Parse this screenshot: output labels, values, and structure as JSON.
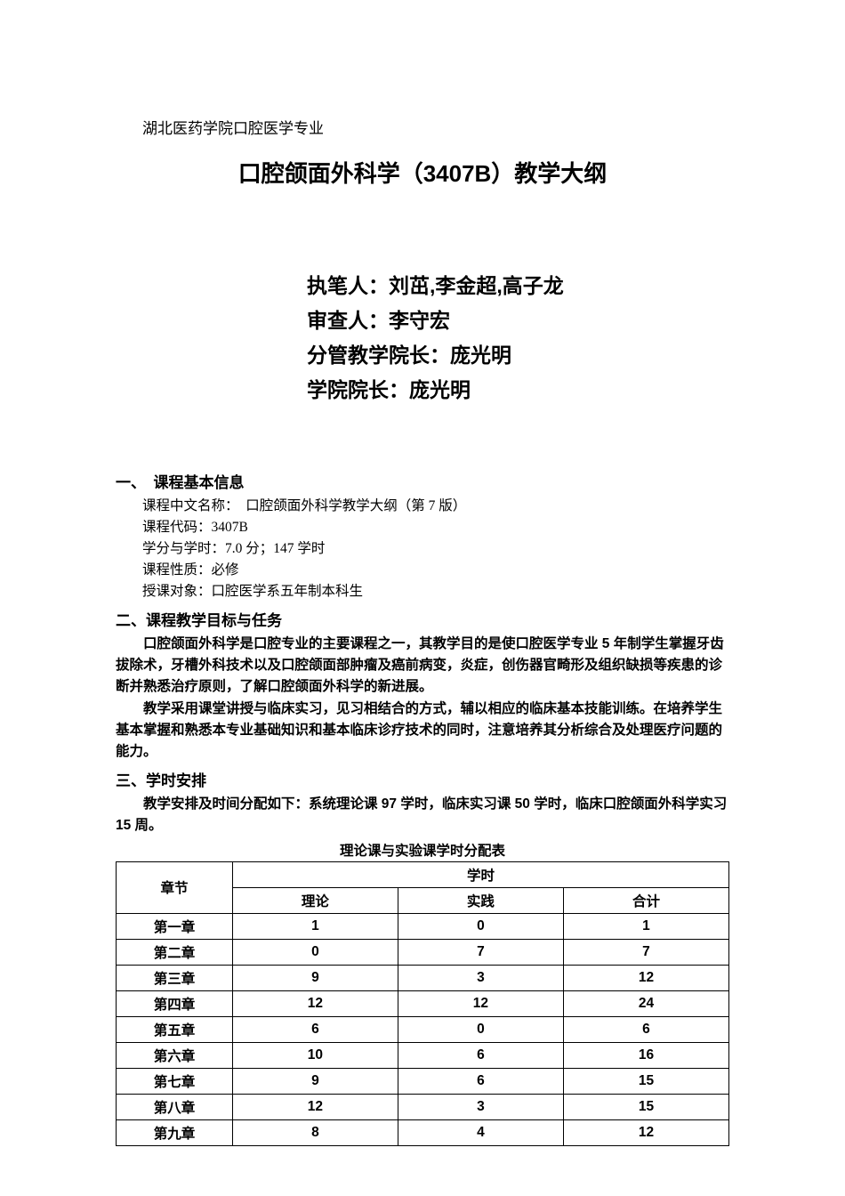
{
  "institution": "湖北医药学院口腔医学专业",
  "title": "口腔颌面外科学（3407B）教学大纲",
  "personnel": {
    "author_label": "执笔人：",
    "author_names": "刘茁,李金超,高子龙",
    "reviewer_label": "审查人：",
    "reviewer_name": "李守宏",
    "teaching_dean_label": "分管教学院长：",
    "teaching_dean_name": "庞光明",
    "dean_label": "学院院长：",
    "dean_name": "庞光明"
  },
  "section1": {
    "heading": "一、　课程基本信息",
    "lines": [
      "课程中文名称：　口腔颌面外科学教学大纲（第 7 版）",
      "课程代码：3407B",
      "学分与学时：7.0 分；147 学时",
      "课程性质：必修",
      "授课对象：口腔医学系五年制本科生"
    ]
  },
  "section2": {
    "heading": "二、课程教学目标与任务",
    "para1": "口腔颌面外科学是口腔专业的主要课程之一，其教学目的是使口腔医学专业 5 年制学生掌握牙齿拔除术，牙槽外科技术以及口腔颌面部肿瘤及癌前病变，炎症，创伤器官畸形及组织缺损等疾患的诊断并熟悉治疗原则，了解口腔颌面外科学的新进展。",
    "para2": "教学采用课堂讲授与临床实习，见习相结合的方式，辅以相应的临床基本技能训练。在培养学生基本掌握和熟悉本专业基础知识和基本临床诊疗技术的同时，注意培养其分析综合及处理医疗问题的能力。"
  },
  "section3": {
    "heading": "三、学时安排",
    "intro": "教学安排及时间分配如下：系统理论课 97 学时，临床实习课 50 学时，临床口腔颌面外科学实习 15 周。",
    "table_caption": "理论课与实验课学时分配表"
  },
  "table": {
    "header_chapter": "章节",
    "header_hours": "学时",
    "header_theory": "理论",
    "header_practice": "实践",
    "header_total": "合计",
    "rows": [
      {
        "chapter": "第一章",
        "theory": "1",
        "practice": "0",
        "total": "1"
      },
      {
        "chapter": "第二章",
        "theory": "0",
        "practice": "7",
        "total": "7"
      },
      {
        "chapter": "第三章",
        "theory": "9",
        "practice": "3",
        "total": "12"
      },
      {
        "chapter": "第四章",
        "theory": "12",
        "practice": "12",
        "total": "24"
      },
      {
        "chapter": "第五章",
        "theory": "6",
        "practice": "0",
        "total": "6"
      },
      {
        "chapter": "第六章",
        "theory": "10",
        "practice": "6",
        "total": "16"
      },
      {
        "chapter": "第七章",
        "theory": "9",
        "practice": "6",
        "total": "15"
      },
      {
        "chapter": "第八章",
        "theory": "12",
        "practice": "3",
        "total": "15"
      },
      {
        "chapter": "第九章",
        "theory": "8",
        "practice": "4",
        "total": "12"
      }
    ]
  }
}
